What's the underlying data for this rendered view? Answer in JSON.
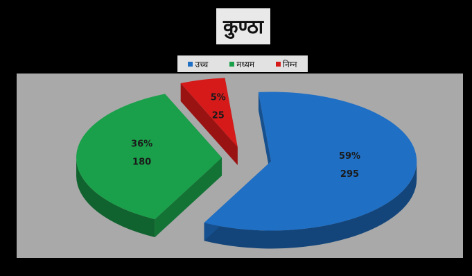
{
  "chart_data": {
    "type": "pie",
    "title": "कुण्ठा",
    "categories": [
      "उच्च",
      "मध्यम",
      "निम्न"
    ],
    "values": [
      295,
      180,
      25
    ],
    "percent_labels": [
      "59%",
      "36%",
      "5%"
    ],
    "value_labels": [
      "295",
      "180",
      "25"
    ],
    "colors": [
      "#1f6fc5",
      "#1aa04a",
      "#d61a1a"
    ],
    "legend_position": "top",
    "style": "3d-exploded",
    "plot_background": "#a9a9a9",
    "page_background": "#000000"
  }
}
